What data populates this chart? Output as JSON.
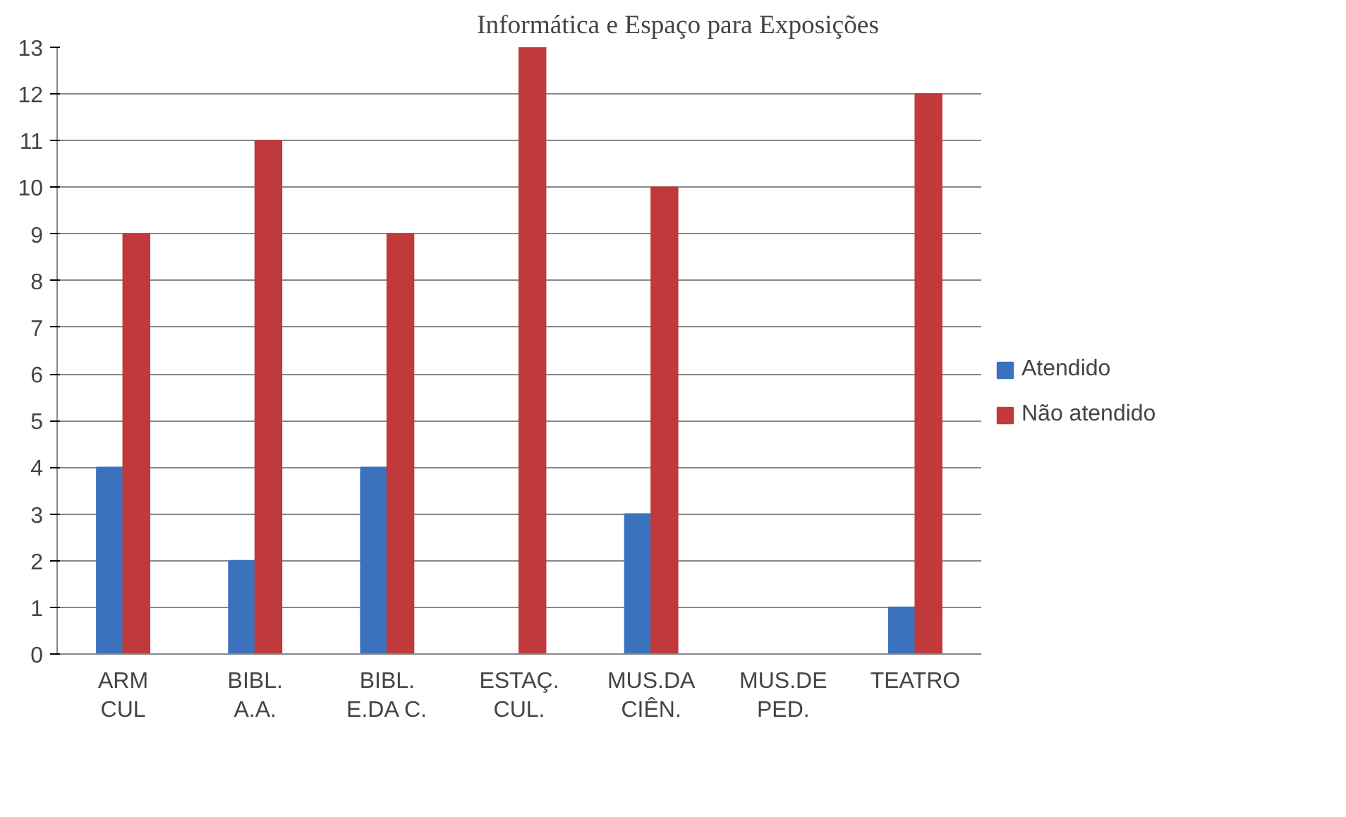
{
  "chart_data": {
    "type": "bar",
    "title": "Informática e Espaço para Exposições",
    "categories": [
      "ARM\nCUL",
      "BIBL.\nA.A.",
      "BIBL.\nE.DA C.",
      "ESTAÇ.\nCUL.",
      "MUS.DA\nCIÊN.",
      "MUS.DE\nPED.",
      "TEATRO"
    ],
    "series": [
      {
        "name": "Atendido",
        "color": "#3b72bd",
        "values": [
          4,
          2,
          4,
          0,
          3,
          0,
          1
        ]
      },
      {
        "name": "Não atendido",
        "color": "#c0393b",
        "values": [
          9,
          11,
          9,
          13,
          10,
          0,
          12
        ]
      }
    ],
    "ylim": [
      0,
      13
    ],
    "yticks": [
      0,
      1,
      2,
      3,
      4,
      5,
      6,
      7,
      8,
      9,
      10,
      11,
      12,
      13
    ],
    "grid": "y",
    "legend": "right"
  }
}
